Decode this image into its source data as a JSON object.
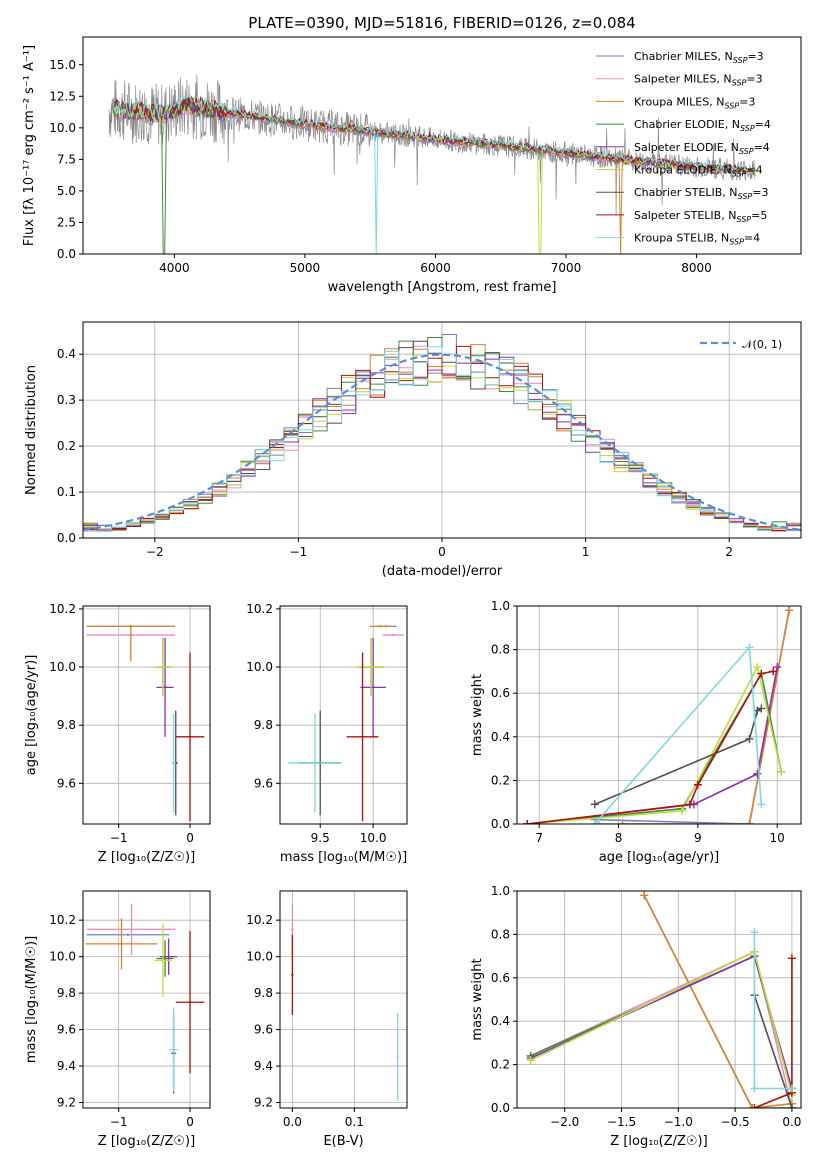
{
  "colors": {
    "Chabrier MILES": "#6b85c9",
    "Salpeter MILES": "#e88cc4",
    "Kroupa MILES": "#d4842c",
    "Chabrier ELODIE": "#3f8a3f",
    "Salpeter ELODIE": "#8e2fb0",
    "Kroupa ELODIE": "#bcdc3c",
    "Chabrier STELIB": "#505050",
    "Salpeter STELIB": "#b01010",
    "Kroupa STELIB": "#7fd8dc",
    "data": "#8a8a8a",
    "normal": "#5a8fd8"
  },
  "chart_data": [
    {
      "id": "spectrum",
      "type": "line",
      "title": "PLATE=0390, MJD=51816, FIBERID=0126, z=0.084",
      "xlabel": "wavelength [Angstrom, rest frame]",
      "ylabel": "Flux [f_λ 10^-17 erg cm^-2 s^-1 A^-1]",
      "xlim": [
        3300,
        8800
      ],
      "ylim": [
        0,
        17.2
      ],
      "xticks": [
        "4000",
        "5000",
        "6000",
        "7000",
        "8000"
      ],
      "yticks": [
        "0.0",
        "2.5",
        "5.0",
        "7.5",
        "10.0",
        "12.5",
        "15.0"
      ],
      "legend": {
        "position": "top-right",
        "entries": [
          {
            "label": "Chabrier MILES, N",
            "sub": "SSP",
            "val": "=3"
          },
          {
            "label": "Salpeter MILES, N",
            "sub": "SSP",
            "val": "=3"
          },
          {
            "label": "Kroupa MILES, N",
            "sub": "SSP",
            "val": "=3"
          },
          {
            "label": "Chabrier ELODIE, N",
            "sub": "SSP",
            "val": "=4"
          },
          {
            "label": "Salpeter ELODIE, N",
            "sub": "SSP",
            "val": "=4"
          },
          {
            "label": "Kroupa ELODIE, N",
            "sub": "SSP",
            "val": "=4"
          },
          {
            "label": "Chabrier STELIB, N",
            "sub": "SSP",
            "val": "=3"
          },
          {
            "label": "Salpeter STELIB, N",
            "sub": "SSP",
            "val": "=5"
          },
          {
            "label": "Kroupa STELIB, N",
            "sub": "SSP",
            "val": "=4"
          }
        ]
      },
      "continuum": [
        [
          3500,
          11.5
        ],
        [
          3700,
          11.3
        ],
        [
          3900,
          11.0
        ],
        [
          4100,
          11.8
        ],
        [
          4300,
          11.4
        ],
        [
          4600,
          10.9
        ],
        [
          5000,
          10.3
        ],
        [
          5500,
          9.7
        ],
        [
          6000,
          9.1
        ],
        [
          6500,
          8.6
        ],
        [
          7000,
          8.0
        ],
        [
          7500,
          7.4
        ],
        [
          8000,
          6.9
        ],
        [
          8450,
          6.6
        ]
      ]
    },
    {
      "id": "residuals",
      "type": "histogram",
      "xlabel": "(data-model)/error",
      "ylabel": "Normed distribution",
      "xlim": [
        -2.5,
        2.5
      ],
      "ylim": [
        0,
        0.47
      ],
      "xticks": [
        "−2",
        "−1",
        "0",
        "1",
        "2"
      ],
      "yticks": [
        "0.0",
        "0.1",
        "0.2",
        "0.3",
        "0.4"
      ],
      "legend": {
        "position": "top-right",
        "label": "𝒩(0, 1)"
      },
      "bin_width": 0.1
    },
    {
      "id": "age-vs-Z",
      "type": "scatter",
      "xlabel": "Z [log₁₀(Z/Z☉)]",
      "ylabel": "age  [log₁₀(age/yr)]",
      "xlim": [
        -1.5,
        0.28
      ],
      "ylim": [
        9.46,
        10.21
      ],
      "xticks": [
        "−1",
        "0"
      ],
      "yticks": [
        "9.6",
        "9.8",
        "10.0",
        "10.2"
      ],
      "points": [
        {
          "m": "Chabrier MILES",
          "x": -0.83,
          "y": 10.14,
          "xe": 0.62,
          "ye": 0.0
        },
        {
          "m": "Salpeter MILES",
          "x": -0.83,
          "y": 10.11,
          "xe": 0.62,
          "ye": 0.0
        },
        {
          "m": "Kroupa MILES",
          "x": -0.83,
          "y": 10.14,
          "xe": 0.62,
          "ye": 0.0,
          "yl": 10.02
        },
        {
          "m": "Chabrier ELODIE",
          "x": -0.38,
          "y": 10.0,
          "xe": 0.1,
          "ye": 0.1
        },
        {
          "m": "Salpeter ELODIE",
          "x": -0.35,
          "y": 9.93,
          "xe": 0.12,
          "ye": 0.17
        },
        {
          "m": "Kroupa ELODIE",
          "x": -0.38,
          "y": 10.0,
          "xe": 0.12,
          "ye": 0.1
        },
        {
          "m": "Chabrier STELIB",
          "x": -0.2,
          "y": 9.67,
          "xe": 0.03,
          "ye": 0.18
        },
        {
          "m": "Salpeter STELIB",
          "x": 0.0,
          "y": 9.76,
          "xe": 0.2,
          "ye": 0.29
        },
        {
          "m": "Kroupa STELIB",
          "x": -0.23,
          "y": 9.67,
          "xe": 0.03,
          "ye": 0.17
        }
      ]
    },
    {
      "id": "age-vs-mass",
      "type": "scatter",
      "xlabel": "mass [log₁₀(M/M☉)]",
      "ylabel": "",
      "xlim": [
        9.12,
        10.32
      ],
      "ylim": [
        9.46,
        10.21
      ],
      "xticks": [
        "9.5",
        "10.0"
      ],
      "yticks": [
        "9.6",
        "9.8",
        "10.0",
        "10.2"
      ],
      "points": [
        {
          "m": "Chabrier MILES",
          "x": 10.12,
          "y": 10.14,
          "xe": 0.1,
          "ye": 0.0
        },
        {
          "m": "Salpeter MILES",
          "x": 10.19,
          "y": 10.11,
          "xe": 0.1,
          "ye": 0.0
        },
        {
          "m": "Kroupa MILES",
          "x": 10.07,
          "y": 10.14,
          "xe": 0.1,
          "ye": 0.0
        },
        {
          "m": "Chabrier ELODIE",
          "x": 9.98,
          "y": 10.0,
          "xe": 0.12,
          "ye": 0.1
        },
        {
          "m": "Salpeter ELODIE",
          "x": 10.0,
          "y": 9.93,
          "xe": 0.12,
          "ye": 0.17
        },
        {
          "m": "Kroupa ELODIE",
          "x": 9.98,
          "y": 10.0,
          "xe": 0.12,
          "ye": 0.1
        },
        {
          "m": "Chabrier STELIB",
          "x": 9.5,
          "y": 9.67,
          "xe": 0.2,
          "ye": 0.18
        },
        {
          "m": "Salpeter STELIB",
          "x": 9.9,
          "y": 9.76,
          "xe": 0.15,
          "ye": 0.29
        },
        {
          "m": "Kroupa STELIB",
          "x": 9.45,
          "y": 9.67,
          "xe": 0.25,
          "ye": 0.17
        }
      ]
    },
    {
      "id": "weight-vs-age",
      "type": "line",
      "xlabel": "age  [log₁₀(age/yr)]",
      "ylabel": "mass weight",
      "xlim": [
        6.72,
        10.3
      ],
      "ylim": [
        0,
        1
      ],
      "xticks": [
        "7",
        "8",
        "9",
        "10"
      ],
      "yticks": [
        "0.0",
        "0.2",
        "0.4",
        "0.6",
        "0.8",
        "1.0"
      ],
      "series": [
        {
          "m": "Chabrier MILES",
          "pts": [
            [
              7.7,
              0.02
            ],
            [
              9.65,
              0.0
            ],
            [
              10.15,
              0.98
            ]
          ]
        },
        {
          "m": "Salpeter MILES",
          "pts": [
            [
              7.75,
              0.0
            ],
            [
              9.65,
              0.0
            ],
            [
              10.15,
              0.98
            ]
          ]
        },
        {
          "m": "Kroupa MILES",
          "pts": [
            [
              8.05,
              0.0
            ],
            [
              9.65,
              0.0
            ],
            [
              10.15,
              0.98
            ]
          ]
        },
        {
          "m": "Chabrier ELODIE",
          "pts": [
            [
              6.85,
              0.0
            ],
            [
              8.8,
              0.07
            ],
            [
              9.8,
              0.69
            ],
            [
              10.05,
              0.24
            ]
          ]
        },
        {
          "m": "Salpeter ELODIE",
          "pts": [
            [
              6.85,
              0.0
            ],
            [
              8.95,
              0.09
            ],
            [
              9.75,
              0.23
            ],
            [
              10.0,
              0.72
            ]
          ]
        },
        {
          "m": "Kroupa ELODIE",
          "pts": [
            [
              6.85,
              0.0
            ],
            [
              8.8,
              0.06
            ],
            [
              9.75,
              0.72
            ],
            [
              10.05,
              0.24
            ]
          ]
        },
        {
          "m": "Chabrier STELIB",
          "pts": [
            [
              7.7,
              0.09
            ],
            [
              9.65,
              0.39
            ],
            [
              9.75,
              0.52
            ],
            [
              9.8,
              0.53
            ]
          ]
        },
        {
          "m": "Salpeter STELIB",
          "pts": [
            [
              6.85,
              0.0
            ],
            [
              8.9,
              0.09
            ],
            [
              9.0,
              0.18
            ],
            [
              9.8,
              0.69
            ],
            [
              9.95,
              0.7
            ]
          ]
        },
        {
          "m": "Kroupa STELIB",
          "pts": [
            [
              7.7,
              0.0
            ],
            [
              9.65,
              0.81
            ],
            [
              9.8,
              0.09
            ]
          ]
        }
      ]
    },
    {
      "id": "mass-vs-Z",
      "type": "scatter",
      "xlabel": "Z [log₁₀(Z/Z☉)]",
      "ylabel": "mass [log₁₀(M/M☉)]",
      "xlim": [
        -1.5,
        0.28
      ],
      "ylim": [
        9.17,
        10.36
      ],
      "xticks": [
        "−1",
        "0"
      ],
      "yticks": [
        "9.2",
        "9.4",
        "9.6",
        "9.8",
        "10.0",
        "10.2"
      ],
      "points": [
        {
          "m": "Chabrier MILES",
          "x": -0.87,
          "y": 10.12,
          "xe": 0.58,
          "ye": 0.0
        },
        {
          "m": "Salpeter MILES",
          "x": -0.82,
          "y": 10.15,
          "xe": 0.62,
          "ye": 0.14
        },
        {
          "m": "Kroupa MILES",
          "x": -0.96,
          "y": 10.07,
          "xe": 0.5,
          "ye": 0.14
        },
        {
          "m": "Chabrier ELODIE",
          "x": -0.35,
          "y": 9.99,
          "xe": 0.12,
          "ye": 0.1
        },
        {
          "m": "Salpeter ELODIE",
          "x": -0.3,
          "y": 10.0,
          "xe": 0.12,
          "ye": 0.1
        },
        {
          "m": "Kroupa ELODIE",
          "x": -0.38,
          "y": 9.98,
          "xe": 0.12,
          "ye": 0.2
        },
        {
          "m": "Chabrier STELIB",
          "x": -0.23,
          "y": 9.47,
          "xe": 0.03,
          "ye": 0.22
        },
        {
          "m": "Salpeter STELIB",
          "x": 0.0,
          "y": 9.75,
          "xe": 0.2,
          "ye": 0.39
        },
        {
          "m": "Kroupa STELIB",
          "x": -0.23,
          "y": 9.49,
          "xe": 0.06,
          "ye": 0.23
        }
      ]
    },
    {
      "id": "mass-vs-EBV",
      "type": "scatter",
      "xlabel": "E(B-V)",
      "ylabel": "",
      "xlim": [
        -0.02,
        0.185
      ],
      "ylim": [
        9.17,
        10.36
      ],
      "xticks": [
        "0.0",
        "0.1"
      ],
      "yticks": [
        "9.2",
        "9.4",
        "9.6",
        "9.8",
        "10.0",
        "10.2"
      ],
      "points": [
        {
          "m": "Salpeter MILES",
          "x": 0.0,
          "y": 10.15,
          "xe": 0,
          "ye": 0.14
        },
        {
          "m": "Salpeter STELIB",
          "x": 0.0,
          "y": 9.9,
          "xe": 0,
          "ye": 0.22
        },
        {
          "m": "Kroupa STELIB",
          "x": 0.17,
          "y": 9.45,
          "xe": 0,
          "ye": 0.24
        }
      ]
    },
    {
      "id": "weight-vs-Z",
      "type": "line",
      "xlabel": "Z [log₁₀(Z/Z☉)]",
      "ylabel": "mass weight",
      "xlim": [
        -2.42,
        0.08
      ],
      "ylim": [
        0,
        1
      ],
      "xticks": [
        "−2.0",
        "−1.5",
        "−1.0",
        "−0.5",
        "0.0"
      ],
      "yticks": [
        "0.0",
        "0.2",
        "0.4",
        "0.6",
        "0.8",
        "1.0"
      ],
      "series": [
        {
          "m": "Chabrier MILES",
          "pts": [
            [
              -1.3,
              0.98
            ],
            [
              -0.35,
              0.0
            ],
            [
              0.0,
              0.0
            ]
          ]
        },
        {
          "m": "Salpeter MILES",
          "pts": [
            [
              -2.3,
              0.24
            ],
            [
              -0.33,
              0.72
            ],
            [
              0.0,
              0.0
            ]
          ]
        },
        {
          "m": "Kroupa MILES",
          "pts": [
            [
              -1.3,
              0.98
            ],
            [
              -0.35,
              0.0
            ],
            [
              0.0,
              0.02
            ]
          ]
        },
        {
          "m": "Chabrier ELODIE",
          "pts": [
            [
              -2.3,
              0.24
            ],
            [
              -0.33,
              0.7
            ],
            [
              0.0,
              0.07
            ]
          ]
        },
        {
          "m": "Salpeter ELODIE",
          "pts": [
            [
              -2.3,
              0.23
            ],
            [
              -0.33,
              0.7
            ],
            [
              0.0,
              0.09
            ]
          ]
        },
        {
          "m": "Kroupa ELODIE",
          "pts": [
            [
              -2.3,
              0.22
            ],
            [
              -0.33,
              0.72
            ],
            [
              0.0,
              0.06
            ]
          ]
        },
        {
          "m": "Chabrier STELIB",
          "pts": [
            [
              -0.33,
              0.52
            ],
            [
              0.0,
              0.0
            ]
          ]
        },
        {
          "m": "Salpeter STELIB",
          "pts": [
            [
              -0.33,
              0.0
            ],
            [
              0.0,
              0.07
            ],
            [
              0.0,
              0.69
            ]
          ]
        },
        {
          "m": "Kroupa STELIB",
          "pts": [
            [
              -0.33,
              0.81
            ],
            [
              -0.33,
              0.09
            ],
            [
              0.0,
              0.09
            ]
          ]
        }
      ]
    }
  ]
}
